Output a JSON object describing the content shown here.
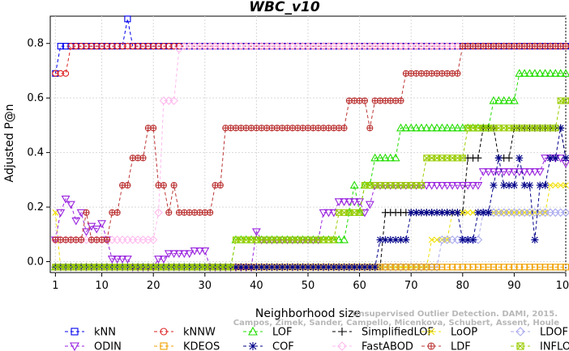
{
  "chart_data": {
    "type": "line",
    "title": "WBC_v10",
    "xlabel": "Neighborhood size",
    "ylabel": "Adjusted P@n",
    "credit_lines": [
      "Unsupervised Outlier Detection. DAMI, 2015.",
      "Campos, Zimek, Sander, Campello, Micenkova, Schubert, Assent, Houle"
    ],
    "xlim": [
      0,
      100
    ],
    "ylim": [
      -0.04,
      0.9
    ],
    "x_ticks": [
      1,
      10,
      20,
      30,
      40,
      50,
      60,
      70,
      80,
      90,
      100
    ],
    "y_ticks": [
      0.0,
      0.2,
      0.4,
      0.6,
      0.8
    ],
    "y_tick_labels": [
      "0.0",
      "0.2",
      "0.4",
      "0.6",
      "0.8"
    ],
    "grid": true,
    "legend_position": "bottom",
    "series": [
      {
        "name": "kNN",
        "color": "#0000ee",
        "marker": "square",
        "segments": [
          [
            1,
            0.69
          ],
          [
            2,
            0.79
          ],
          [
            14,
            0.79
          ],
          [
            15,
            0.89
          ],
          [
            16,
            0.79
          ],
          [
            100,
            0.79
          ]
        ]
      },
      {
        "name": "kNNW",
        "color": "#dd2222",
        "marker": "circle",
        "segments": [
          [
            1,
            0.69
          ],
          [
            3,
            0.69
          ],
          [
            4,
            0.79
          ],
          [
            100,
            0.79
          ]
        ]
      },
      {
        "name": "LOF",
        "color": "#22dd00",
        "marker": "triangle-up",
        "segments": [
          [
            1,
            -0.02
          ],
          [
            35,
            -0.02
          ],
          [
            36,
            0.08
          ],
          [
            57,
            0.08
          ],
          [
            58,
            0.18
          ],
          [
            59,
            0.28
          ],
          [
            60,
            0.18
          ],
          [
            61,
            0.28
          ],
          [
            62,
            0.28
          ],
          [
            63,
            0.38
          ],
          [
            64,
            0.38
          ],
          [
            67,
            0.38
          ],
          [
            68,
            0.49
          ],
          [
            85,
            0.49
          ],
          [
            86,
            0.59
          ],
          [
            90,
            0.59
          ],
          [
            91,
            0.69
          ],
          [
            100,
            0.69
          ]
        ]
      },
      {
        "name": "SimplifiedLOF",
        "color": "#000000",
        "marker": "plus",
        "segments": [
          [
            1,
            -0.02
          ],
          [
            64,
            -0.02
          ],
          [
            65,
            0.18
          ],
          [
            80,
            0.18
          ],
          [
            81,
            0.38
          ],
          [
            83,
            0.38
          ],
          [
            84,
            0.49
          ],
          [
            86,
            0.49
          ],
          [
            87,
            0.38
          ],
          [
            89,
            0.38
          ],
          [
            90,
            0.49
          ],
          [
            99,
            0.49
          ],
          [
            100,
            0.38
          ]
        ]
      },
      {
        "name": "LoOP",
        "color": "#f0e000",
        "marker": "x",
        "segments": [
          [
            1,
            0.18
          ],
          [
            2,
            -0.02
          ],
          [
            73,
            -0.02
          ],
          [
            74,
            0.08
          ],
          [
            77,
            0.08
          ],
          [
            78,
            0.18
          ],
          [
            96,
            0.18
          ],
          [
            97,
            0.28
          ],
          [
            100,
            0.28
          ]
        ]
      },
      {
        "name": "LDOF",
        "color": "#aaaaee",
        "marker": "diamond",
        "segments": [
          [
            1,
            -0.02
          ],
          [
            75,
            -0.02
          ],
          [
            76,
            0.08
          ],
          [
            82,
            0.08
          ],
          [
            84,
            0.18
          ],
          [
            100,
            0.18
          ]
        ]
      },
      {
        "name": "ODIN",
        "color": "#9922dd",
        "marker": "triangle-down",
        "segments": [
          [
            1,
            0.08
          ],
          [
            2,
            0.18
          ],
          [
            3,
            0.23
          ],
          [
            4,
            0.21
          ],
          [
            5,
            0.15
          ],
          [
            6,
            0.18
          ],
          [
            7,
            0.11
          ],
          [
            8,
            0.13
          ],
          [
            9,
            0.12
          ],
          [
            10,
            0.14
          ],
          [
            11,
            0.08
          ],
          [
            12,
            0.01
          ],
          [
            15,
            0.01
          ],
          [
            16,
            -0.02
          ],
          [
            20,
            -0.02
          ],
          [
            21,
            0.01
          ],
          [
            22,
            0.01
          ],
          [
            23,
            0.03
          ],
          [
            27,
            0.03
          ],
          [
            28,
            0.04
          ],
          [
            30,
            0.04
          ],
          [
            31,
            -0.02
          ],
          [
            39,
            -0.02
          ],
          [
            40,
            0.11
          ],
          [
            41,
            0.08
          ],
          [
            52,
            0.08
          ],
          [
            53,
            0.18
          ],
          [
            55,
            0.18
          ],
          [
            56,
            0.22
          ],
          [
            60,
            0.22
          ],
          [
            61,
            0.18
          ],
          [
            62,
            0.21
          ],
          [
            63,
            0.28
          ],
          [
            83,
            0.28
          ],
          [
            84,
            0.33
          ],
          [
            95,
            0.33
          ],
          [
            96,
            0.38
          ],
          [
            100,
            0.36
          ]
        ]
      },
      {
        "name": "KDEOS",
        "color": "#f0a000",
        "marker": "square",
        "segments": [
          [
            1,
            -0.02
          ],
          [
            100,
            -0.02
          ]
        ]
      },
      {
        "name": "COF",
        "color": "#000088",
        "marker": "star",
        "segments": [
          [
            1,
            -0.02
          ],
          [
            63,
            -0.02
          ],
          [
            64,
            0.08
          ],
          [
            69,
            0.08
          ],
          [
            70,
            0.18
          ],
          [
            79,
            0.18
          ],
          [
            80,
            0.08
          ],
          [
            82,
            0.08
          ],
          [
            83,
            0.18
          ],
          [
            85,
            0.18
          ],
          [
            86,
            0.28
          ],
          [
            87,
            0.38
          ],
          [
            88,
            0.28
          ],
          [
            90,
            0.28
          ],
          [
            91,
            0.38
          ],
          [
            92,
            0.28
          ],
          [
            93,
            0.28
          ],
          [
            94,
            0.08
          ],
          [
            95,
            0.28
          ],
          [
            96,
            0.28
          ],
          [
            97,
            0.38
          ],
          [
            98,
            0.38
          ],
          [
            99,
            0.49
          ],
          [
            100,
            0.38
          ]
        ]
      },
      {
        "name": "FastABOD",
        "color": "#ffbbee",
        "marker": "diamond",
        "segments": [
          [
            1,
            0.08
          ],
          [
            20,
            0.08
          ],
          [
            21,
            0.18
          ],
          [
            22,
            0.59
          ],
          [
            24,
            0.59
          ],
          [
            25,
            0.78
          ],
          [
            26,
            0.79
          ],
          [
            100,
            0.79
          ]
        ]
      },
      {
        "name": "LDF",
        "color": "#bb3333",
        "marker": "circle-plus",
        "segments": [
          [
            1,
            0.08
          ],
          [
            6,
            0.08
          ],
          [
            7,
            0.18
          ],
          [
            8,
            0.08
          ],
          [
            11,
            0.08
          ],
          [
            12,
            0.18
          ],
          [
            13,
            0.18
          ],
          [
            14,
            0.28
          ],
          [
            15,
            0.28
          ],
          [
            16,
            0.38
          ],
          [
            18,
            0.38
          ],
          [
            19,
            0.49
          ],
          [
            20,
            0.49
          ],
          [
            21,
            0.28
          ],
          [
            22,
            0.28
          ],
          [
            23,
            0.18
          ],
          [
            24,
            0.28
          ],
          [
            25,
            0.18
          ],
          [
            31,
            0.18
          ],
          [
            32,
            0.28
          ],
          [
            33,
            0.28
          ],
          [
            34,
            0.49
          ],
          [
            57,
            0.49
          ],
          [
            58,
            0.59
          ],
          [
            61,
            0.59
          ],
          [
            62,
            0.49
          ],
          [
            63,
            0.59
          ],
          [
            68,
            0.59
          ],
          [
            69,
            0.69
          ],
          [
            79,
            0.69
          ],
          [
            80,
            0.79
          ],
          [
            100,
            0.79
          ]
        ]
      },
      {
        "name": "INFLO",
        "color": "#99cc00",
        "marker": "asterisk-box",
        "segments": [
          [
            1,
            -0.02
          ],
          [
            35,
            -0.02
          ],
          [
            36,
            0.08
          ],
          [
            55,
            0.08
          ],
          [
            56,
            0.18
          ],
          [
            60,
            0.18
          ],
          [
            61,
            0.28
          ],
          [
            72,
            0.28
          ],
          [
            73,
            0.38
          ],
          [
            80,
            0.38
          ],
          [
            81,
            0.49
          ],
          [
            88,
            0.49
          ],
          [
            89,
            0.49
          ],
          [
            98,
            0.49
          ],
          [
            99,
            0.59
          ],
          [
            100,
            0.59
          ]
        ]
      }
    ]
  }
}
